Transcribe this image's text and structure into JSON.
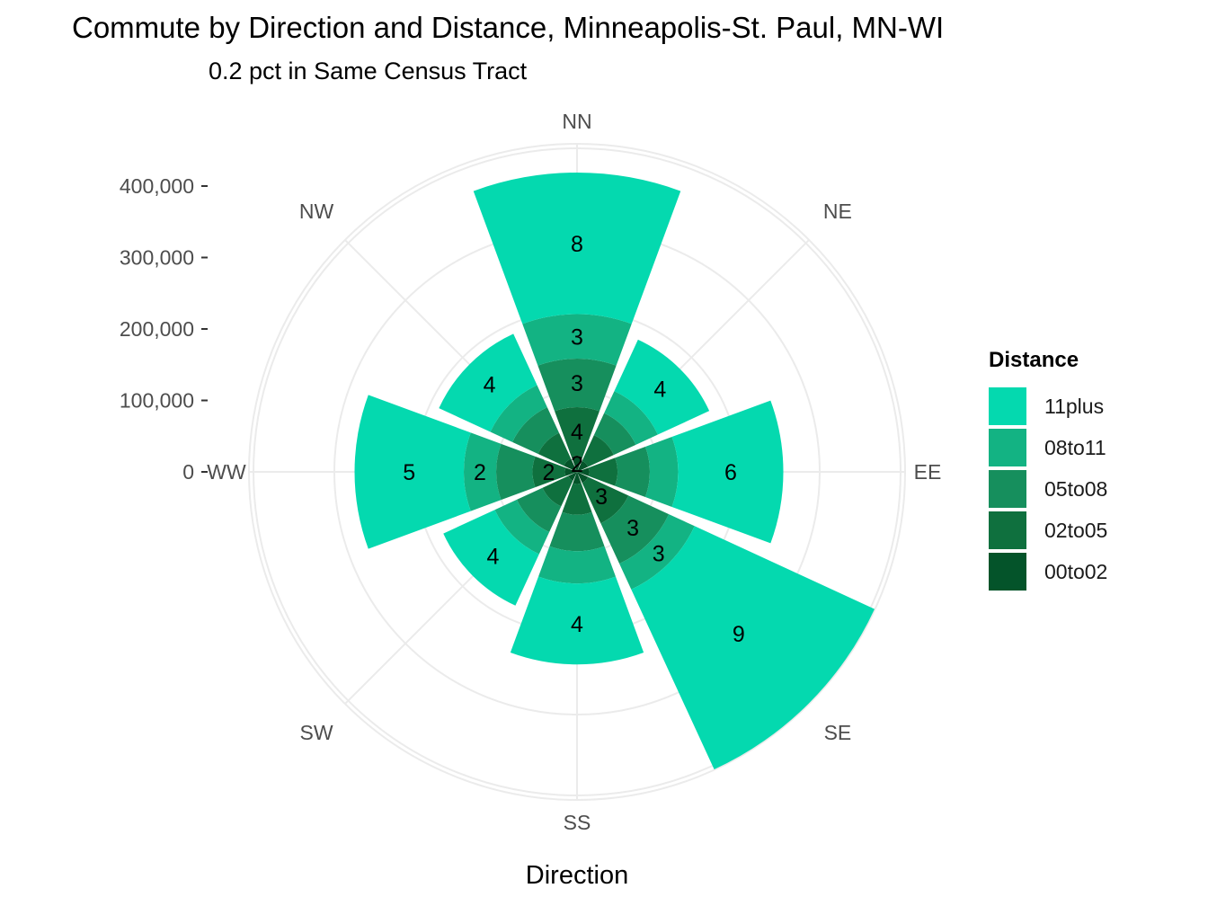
{
  "title": "Commute by Direction and Distance, Minneapolis-St. Paul, MN-WI",
  "subtitle": "0.2 pct in Same Census Tract",
  "chart_data": {
    "type": "bar",
    "coord": "polar",
    "title": "Commute by Direction and Distance, Minneapolis-St. Paul, MN-WI",
    "subtitle": "0.2 pct in Same Census Tract",
    "xlabel": "Direction",
    "ylabel": "",
    "categories": [
      "NN",
      "NE",
      "EE",
      "SE",
      "SS",
      "SW",
      "WW",
      "NW"
    ],
    "ylim": [
      0,
      400000
    ],
    "yticks": [
      0,
      100000,
      200000,
      300000,
      400000
    ],
    "ytick_labels": [
      "0",
      "100,000",
      "200,000",
      "300,000",
      "400,000"
    ],
    "grid": true,
    "legend_title": "Distance",
    "legend_position": "right",
    "stack_order_inner_to_outer": [
      "00to02",
      "02to05",
      "05to08",
      "08to11",
      "11plus"
    ],
    "series": [
      {
        "name": "00to02",
        "color": "#04542a",
        "values": [
          20000,
          15000,
          15000,
          15000,
          15000,
          12000,
          15000,
          18000
        ]
      },
      {
        "name": "02to05",
        "color": "#0f703e",
        "values": [
          60000,
          35000,
          35000,
          55000,
          38000,
          35000,
          40000,
          35000
        ]
      },
      {
        "name": "05to08",
        "color": "#168f5d",
        "values": [
          60000,
          30000,
          40000,
          55000,
          45000,
          35000,
          45000,
          35000
        ]
      },
      {
        "name": "08to11",
        "color": "#13b383",
        "values": [
          55000,
          30000,
          35000,
          35000,
          40000,
          30000,
          40000,
          30000
        ]
      },
      {
        "name": "11plus",
        "color": "#04d9af",
        "values": [
          175000,
          70000,
          130000,
          245000,
          100000,
          70000,
          135000,
          70000
        ]
      }
    ],
    "bar_labels": [
      {
        "category": "NN",
        "series": "00to02",
        "text": "2"
      },
      {
        "category": "NN",
        "series": "02to05",
        "text": "4"
      },
      {
        "category": "NN",
        "series": "05to08",
        "text": "3"
      },
      {
        "category": "NN",
        "series": "08to11",
        "text": "3"
      },
      {
        "category": "NN",
        "series": "11plus",
        "text": "8"
      },
      {
        "category": "NE",
        "series": "11plus",
        "text": "4"
      },
      {
        "category": "EE",
        "series": "11plus",
        "text": "6"
      },
      {
        "category": "SE",
        "series": "02to05",
        "text": "3"
      },
      {
        "category": "SE",
        "series": "05to08",
        "text": "3"
      },
      {
        "category": "SE",
        "series": "08to11",
        "text": "3"
      },
      {
        "category": "SE",
        "series": "11plus",
        "text": "9"
      },
      {
        "category": "SS",
        "series": "11plus",
        "text": "4"
      },
      {
        "category": "SW",
        "series": "11plus",
        "text": "4"
      },
      {
        "category": "WW",
        "series": "02to05",
        "text": "2"
      },
      {
        "category": "WW",
        "series": "08to11",
        "text": "2"
      },
      {
        "category": "WW",
        "series": "11plus",
        "text": "5"
      },
      {
        "category": "NW",
        "series": "11plus",
        "text": "4"
      }
    ]
  }
}
